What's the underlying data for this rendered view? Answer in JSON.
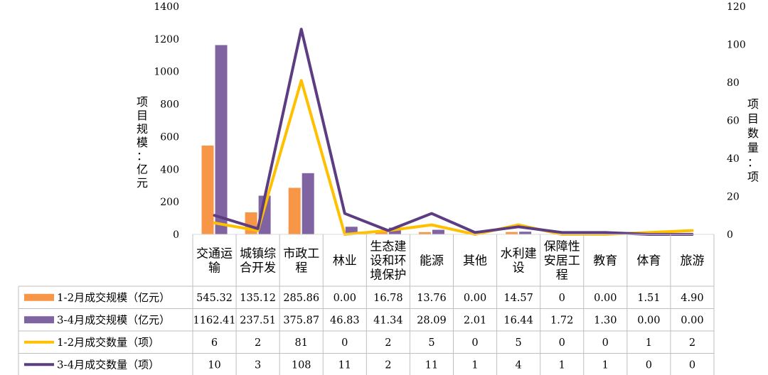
{
  "chart_data": {
    "type": "bar+line",
    "categories": [
      [
        "交通运",
        "输"
      ],
      [
        "城镇综",
        "合开发"
      ],
      [
        "市政工",
        "程"
      ],
      [
        "林业"
      ],
      [
        "生态建",
        "设和环",
        "境保护"
      ],
      [
        "能源"
      ],
      [
        "其他"
      ],
      [
        "水利建",
        "设"
      ],
      [
        "保障性",
        "安居工",
        "程"
      ],
      [
        "教育"
      ],
      [
        "体育"
      ],
      [
        "旅游"
      ]
    ],
    "y_left": {
      "label_chars": [
        "项",
        "目",
        "规",
        "模",
        "：",
        "亿",
        "元"
      ],
      "ticks": [
        "0",
        "200",
        "400",
        "600",
        "800",
        "1000",
        "1200",
        "1400"
      ],
      "min": 0,
      "max": 1400
    },
    "y_right": {
      "label_chars": [
        "项",
        "目",
        "数",
        "量",
        "：",
        "项"
      ],
      "ticks": [
        "0",
        "20",
        "40",
        "60",
        "80",
        "100",
        "120"
      ],
      "min": 0,
      "max": 120
    },
    "series": [
      {
        "name": "1-2月成交规模（亿元）",
        "kind": "bar",
        "axis": "left",
        "color": "#F79646",
        "values": [
          545.32,
          135.12,
          285.86,
          0.0,
          16.78,
          13.76,
          0.0,
          14.57,
          0,
          0.0,
          1.51,
          4.9
        ],
        "labels": [
          "545.32",
          "135.12",
          "285.86",
          "0.00",
          "16.78",
          "13.76",
          "0.00",
          "14.57",
          "0",
          "0.00",
          "1.51",
          "4.90"
        ]
      },
      {
        "name": "3-4月成交规模（亿元）",
        "kind": "bar",
        "axis": "left",
        "color": "#8064A2",
        "values": [
          1162.41,
          237.51,
          375.87,
          46.83,
          41.34,
          28.09,
          2.01,
          16.44,
          1.72,
          1.3,
          0.0,
          0.0
        ],
        "labels": [
          "1162.41",
          "237.51",
          "375.87",
          "46.83",
          "41.34",
          "28.09",
          "2.01",
          "16.44",
          "1.72",
          "1.30",
          "0.00",
          "0.00"
        ]
      },
      {
        "name": "1-2月成交数量（项）",
        "kind": "line",
        "axis": "right",
        "color": "#FFC000",
        "values": [
          6,
          2,
          81,
          0,
          2,
          5,
          0,
          5,
          0,
          0,
          1,
          2
        ],
        "labels": [
          "6",
          "2",
          "81",
          "0",
          "2",
          "5",
          "0",
          "5",
          "0",
          "0",
          "1",
          "2"
        ]
      },
      {
        "name": "3-4月成交数量（项）",
        "kind": "line",
        "axis": "right",
        "color": "#5C3D82",
        "values": [
          10,
          3,
          108,
          11,
          2,
          11,
          1,
          4,
          1,
          1,
          0,
          0
        ],
        "labels": [
          "10",
          "3",
          "108",
          "11",
          "2",
          "11",
          "1",
          "4",
          "1",
          "1",
          "0",
          "0"
        ]
      }
    ],
    "legend_placement": "data-table",
    "grid": false
  }
}
